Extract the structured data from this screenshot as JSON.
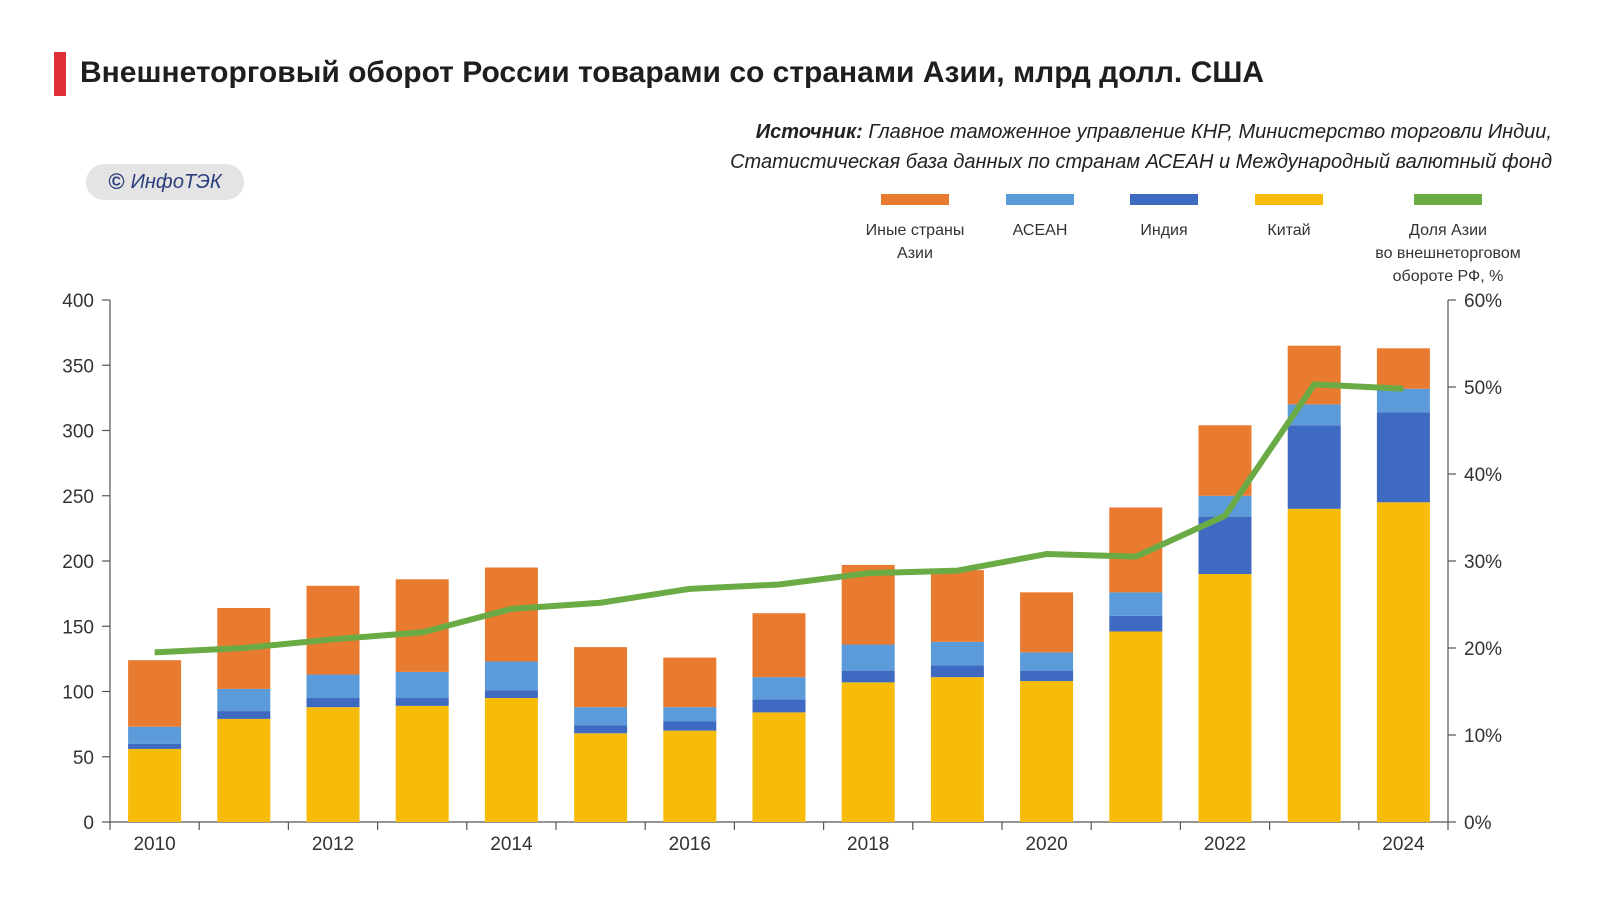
{
  "header": {
    "title": "Внешнеторговый оборот России товарами со странами Азии, млрд долл. США",
    "source_label": "Источник:",
    "source_line1": "Главное таможенное управление КНР, Министерство торговли Индии,",
    "source_line2": "Статистическая база данных по странам АСЕАН и Международный валютный фонд",
    "logo_symbol": "©",
    "logo_text": "ИнфоТЭК"
  },
  "legend": [
    {
      "label": "Иные страны\nАзии",
      "color": "#e97b31"
    },
    {
      "label": "АСЕАН",
      "color": "#5b9bd9"
    },
    {
      "label": "Индия",
      "color": "#3f6ac1"
    },
    {
      "label": "Китай",
      "color": "#f7bb0a"
    },
    {
      "label": "Доля Азии\nво внешнеторговом\nобороте РФ, %",
      "color": "#6aab45"
    }
  ],
  "chart_data": {
    "type": "bar",
    "stacked": true,
    "title": "Внешнеторговый оборот России товарами со странами Азии, млрд долл. США",
    "categories": [
      "2010",
      "2011",
      "2012",
      "2013",
      "2014",
      "2015",
      "2016",
      "2017",
      "2018",
      "2019",
      "2020",
      "2021",
      "2022",
      "2023",
      "2024"
    ],
    "x_tick_labels": [
      "2010",
      "",
      "2012",
      "",
      "2014",
      "",
      "2016",
      "",
      "2018",
      "",
      "2020",
      "",
      "2022",
      "",
      "2024"
    ],
    "series": [
      {
        "name": "Китай",
        "color": "#f7bb0a",
        "values": [
          56,
          79,
          88,
          89,
          95,
          68,
          70,
          84,
          107,
          111,
          108,
          146,
          190,
          240,
          245
        ]
      },
      {
        "name": "Индия",
        "color": "#3f6ac1",
        "values": [
          4,
          6,
          7,
          6,
          6,
          6,
          7,
          10,
          9,
          9,
          8,
          12,
          44,
          64,
          69
        ]
      },
      {
        "name": "АСЕАН",
        "color": "#5b9bd9",
        "values": [
          13,
          17,
          18,
          20,
          22,
          14,
          11,
          17,
          20,
          18,
          14,
          18,
          16,
          16,
          18
        ]
      },
      {
        "name": "Иные страны Азии",
        "color": "#e97b31",
        "values": [
          51,
          62,
          68,
          71,
          72,
          46,
          38,
          49,
          61,
          55,
          46,
          65,
          54,
          45,
          31
        ]
      }
    ],
    "line_series": {
      "name": "Доля Азии во внешнеторговом обороте РФ, %",
      "color": "#6aab45",
      "axis": "right",
      "values": [
        19.5,
        20,
        21,
        21.8,
        24.5,
        25.2,
        26.8,
        27.3,
        28.6,
        28.9,
        30.8,
        30.5,
        35.2,
        50.3,
        49.8
      ]
    },
    "y_left": {
      "min": 0,
      "max": 400,
      "ticks": [
        0,
        50,
        100,
        150,
        200,
        250,
        300,
        350,
        400
      ]
    },
    "y_right": {
      "min": 0,
      "max": 60,
      "ticks": [
        "0%",
        "10%",
        "20%",
        "30%",
        "40%",
        "50%",
        "60%"
      ]
    }
  }
}
